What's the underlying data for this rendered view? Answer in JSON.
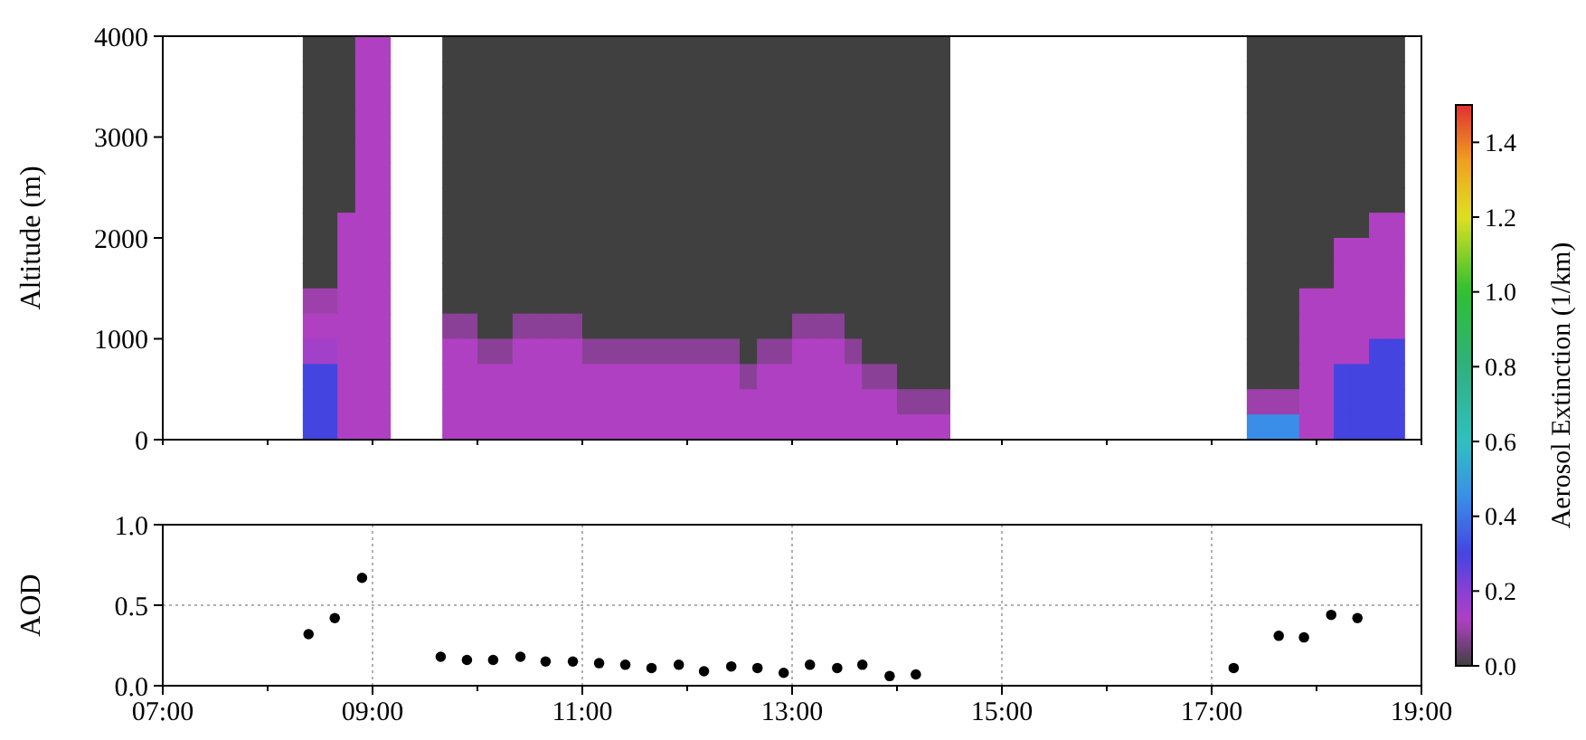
{
  "chart_data": [
    {
      "type": "heatmap",
      "ylabel": "Altitude (m)",
      "clabel": "Aerosol Extinction (1/km)",
      "tick_labels": "y",
      "xlim": [
        7,
        19
      ],
      "xticks": [
        {
          "value": 7,
          "label": null
        },
        {
          "value": 8,
          "label": null
        },
        {
          "value": 9,
          "label": null
        },
        {
          "value": 10,
          "label": null
        },
        {
          "value": 11,
          "label": null
        },
        {
          "value": 12,
          "label": null
        },
        {
          "value": 13,
          "label": null
        },
        {
          "value": 14,
          "label": null
        },
        {
          "value": 15,
          "label": null
        },
        {
          "value": 16,
          "label": null
        },
        {
          "value": 17,
          "label": null
        },
        {
          "value": 18,
          "label": null
        },
        {
          "value": 19,
          "label": null
        }
      ],
      "ylim": [
        0,
        4000
      ],
      "yticks": [
        0,
        1000,
        2000,
        3000,
        4000
      ],
      "clim": [
        0,
        1.5
      ],
      "cticks": [
        {
          "value": 0,
          "label": "0.0"
        },
        {
          "value": 0.2,
          "label": "0.2"
        },
        {
          "value": 0.4,
          "label": "0.4"
        },
        {
          "value": 0.6,
          "label": "0.6"
        },
        {
          "value": 0.8,
          "label": "0.8"
        },
        {
          "value": 1,
          "label": "1.0"
        },
        {
          "value": 1.2,
          "label": "1.2"
        },
        {
          "value": 1.4,
          "label": "1.4"
        }
      ],
      "x": [
        7.08,
        7.25,
        7.42,
        7.58,
        7.75,
        7.92,
        8.08,
        8.25,
        8.42,
        8.58,
        8.75,
        8.92,
        9.08,
        9.25,
        9.42,
        9.58,
        9.75,
        9.92,
        10.08,
        10.25,
        10.42,
        10.58,
        10.75,
        10.92,
        11.08,
        11.25,
        11.42,
        11.58,
        11.75,
        11.92,
        12.08,
        12.25,
        12.42,
        12.58,
        12.75,
        12.92,
        13.08,
        13.25,
        13.42,
        13.58,
        13.75,
        13.92,
        14.08,
        14.25,
        14.42,
        14.58,
        14.75,
        14.92,
        15.08,
        15.25,
        15.42,
        15.58,
        15.75,
        15.92,
        16.08,
        16.25,
        16.42,
        16.58,
        16.75,
        16.92,
        17.08,
        17.25,
        17.42,
        17.58,
        17.75,
        17.92,
        18.08,
        18.25,
        18.42,
        18.58,
        18.75,
        18.92
      ],
      "cells": [
        [
          null,
          null,
          null,
          null,
          null,
          null,
          null,
          null,
          0,
          0,
          0,
          0.12,
          0.12,
          null,
          null,
          null,
          0,
          0,
          0,
          0,
          0,
          0,
          0,
          0,
          0,
          0,
          0,
          0,
          0,
          0,
          0,
          0,
          0,
          0,
          0,
          0,
          0,
          0,
          0,
          0,
          0,
          0,
          0,
          0,
          0,
          null,
          null,
          null,
          null,
          null,
          null,
          null,
          null,
          null,
          null,
          null,
          null,
          null,
          null,
          null,
          null,
          null,
          0,
          0,
          0,
          0,
          0,
          0,
          0,
          0,
          0,
          null
        ],
        [
          null,
          null,
          null,
          null,
          null,
          null,
          null,
          null,
          0,
          0,
          0,
          0.12,
          0.12,
          null,
          null,
          null,
          0,
          0,
          0,
          0,
          0,
          0,
          0,
          0,
          0,
          0,
          0,
          0,
          0,
          0,
          0,
          0,
          0,
          0,
          0,
          0,
          0,
          0,
          0,
          0,
          0,
          0,
          0,
          0,
          0,
          null,
          null,
          null,
          null,
          null,
          null,
          null,
          null,
          null,
          null,
          null,
          null,
          null,
          null,
          null,
          null,
          null,
          0,
          0,
          0,
          0,
          0,
          0,
          0,
          0,
          0,
          null
        ],
        [
          null,
          null,
          null,
          null,
          null,
          null,
          null,
          null,
          0,
          0,
          0,
          0.12,
          0.12,
          null,
          null,
          null,
          0,
          0,
          0,
          0,
          0,
          0,
          0,
          0,
          0,
          0,
          0,
          0,
          0,
          0,
          0,
          0,
          0,
          0,
          0,
          0,
          0,
          0,
          0,
          0,
          0,
          0,
          0,
          0,
          0,
          null,
          null,
          null,
          null,
          null,
          null,
          null,
          null,
          null,
          null,
          null,
          null,
          null,
          null,
          null,
          null,
          null,
          0,
          0,
          0,
          0,
          0,
          0,
          0,
          0,
          0,
          null
        ],
        [
          null,
          null,
          null,
          null,
          null,
          null,
          null,
          null,
          0,
          0,
          0,
          0.12,
          0.12,
          null,
          null,
          null,
          0,
          0,
          0,
          0,
          0,
          0,
          0,
          0,
          0,
          0,
          0,
          0,
          0,
          0,
          0,
          0,
          0,
          0,
          0,
          0,
          0,
          0,
          0,
          0,
          0,
          0,
          0,
          0,
          0,
          null,
          null,
          null,
          null,
          null,
          null,
          null,
          null,
          null,
          null,
          null,
          null,
          null,
          null,
          null,
          null,
          null,
          0,
          0,
          0,
          0,
          0,
          0,
          0,
          0,
          0,
          null
        ],
        [
          null,
          null,
          null,
          null,
          null,
          null,
          null,
          null,
          0,
          0,
          0,
          0.12,
          0.12,
          null,
          null,
          null,
          0,
          0,
          0,
          0,
          0,
          0,
          0,
          0,
          0,
          0,
          0,
          0,
          0,
          0,
          0,
          0,
          0,
          0,
          0,
          0,
          0,
          0,
          0,
          0,
          0,
          0,
          0,
          0,
          0,
          null,
          null,
          null,
          null,
          null,
          null,
          null,
          null,
          null,
          null,
          null,
          null,
          null,
          null,
          null,
          null,
          null,
          0,
          0,
          0,
          0,
          0,
          0,
          0,
          0,
          0,
          null
        ],
        [
          null,
          null,
          null,
          null,
          null,
          null,
          null,
          null,
          0,
          0,
          0,
          0.12,
          0.12,
          null,
          null,
          null,
          0,
          0,
          0,
          0,
          0,
          0,
          0,
          0,
          0,
          0,
          0,
          0,
          0,
          0,
          0,
          0,
          0,
          0,
          0,
          0,
          0,
          0,
          0,
          0,
          0,
          0,
          0,
          0,
          0,
          null,
          null,
          null,
          null,
          null,
          null,
          null,
          null,
          null,
          null,
          null,
          null,
          null,
          null,
          null,
          null,
          null,
          0,
          0,
          0,
          0,
          0,
          0,
          0,
          0,
          0,
          null
        ],
        [
          null,
          null,
          null,
          null,
          null,
          null,
          null,
          null,
          0,
          0,
          0,
          0.12,
          0.12,
          null,
          null,
          null,
          0,
          0,
          0,
          0,
          0,
          0,
          0,
          0,
          0,
          0,
          0,
          0,
          0,
          0,
          0,
          0,
          0,
          0,
          0,
          0,
          0,
          0,
          0,
          0,
          0,
          0,
          0,
          0,
          0,
          null,
          null,
          null,
          null,
          null,
          null,
          null,
          null,
          null,
          null,
          null,
          null,
          null,
          null,
          null,
          null,
          null,
          0,
          0,
          0,
          0,
          0,
          0,
          0,
          0,
          0,
          null
        ],
        [
          null,
          null,
          null,
          null,
          null,
          null,
          null,
          null,
          0,
          0,
          0.12,
          0.12,
          0.12,
          null,
          null,
          null,
          0,
          0,
          0,
          0,
          0,
          0,
          0,
          0,
          0,
          0,
          0,
          0,
          0,
          0,
          0,
          0,
          0,
          0,
          0,
          0,
          0,
          0,
          0,
          0,
          0,
          0,
          0,
          0,
          0,
          null,
          null,
          null,
          null,
          null,
          null,
          null,
          null,
          null,
          null,
          null,
          null,
          null,
          null,
          null,
          null,
          null,
          0,
          0,
          0,
          0,
          0,
          0,
          0,
          0.12,
          0.12,
          null
        ],
        [
          null,
          null,
          null,
          null,
          null,
          null,
          null,
          null,
          0,
          0,
          0.12,
          0.12,
          0.12,
          null,
          null,
          null,
          0,
          0,
          0,
          0,
          0,
          0,
          0,
          0,
          0,
          0,
          0,
          0,
          0,
          0,
          0,
          0,
          0,
          0,
          0,
          0,
          0,
          0,
          0,
          0,
          0,
          0,
          0,
          0,
          0,
          null,
          null,
          null,
          null,
          null,
          null,
          null,
          null,
          null,
          null,
          null,
          null,
          null,
          null,
          null,
          null,
          null,
          0,
          0,
          0,
          0,
          0,
          0.12,
          0.12,
          0.12,
          0.12,
          null
        ],
        [
          null,
          null,
          null,
          null,
          null,
          null,
          null,
          null,
          0,
          0,
          0.12,
          0.12,
          0.12,
          null,
          null,
          null,
          0,
          0,
          0,
          0,
          0,
          0,
          0,
          0,
          0,
          0,
          0,
          0,
          0,
          0,
          0,
          0,
          0,
          0,
          0,
          0,
          0,
          0,
          0,
          0,
          0,
          0,
          0,
          0,
          0,
          null,
          null,
          null,
          null,
          null,
          null,
          null,
          null,
          null,
          null,
          null,
          null,
          null,
          null,
          null,
          null,
          null,
          0,
          0,
          0,
          0,
          0,
          0.12,
          0.12,
          0.12,
          0.12,
          null
        ],
        [
          null,
          null,
          null,
          null,
          null,
          null,
          null,
          null,
          0.1,
          0.1,
          0.12,
          0.12,
          0.12,
          null,
          null,
          null,
          0,
          0,
          0,
          0,
          0,
          0,
          0,
          0,
          0,
          0,
          0,
          0,
          0,
          0,
          0,
          0,
          0,
          0,
          0,
          0,
          0,
          0,
          0,
          0,
          0,
          0,
          0,
          0,
          0,
          null,
          null,
          null,
          null,
          null,
          null,
          null,
          null,
          null,
          null,
          null,
          null,
          null,
          null,
          null,
          null,
          null,
          0,
          0,
          0,
          0.12,
          0.12,
          0.12,
          0.12,
          0.12,
          0.12,
          null
        ],
        [
          null,
          null,
          null,
          null,
          null,
          null,
          null,
          null,
          0.12,
          0.12,
          0.12,
          0.12,
          0.12,
          null,
          null,
          null,
          0.08,
          0.08,
          0,
          0,
          0.08,
          0.08,
          0.08,
          0.08,
          0,
          0,
          0,
          0,
          0,
          0,
          0,
          0,
          0,
          0,
          0,
          0,
          0.08,
          0.08,
          0.08,
          0,
          0,
          0,
          0,
          0,
          0,
          null,
          null,
          null,
          null,
          null,
          null,
          null,
          null,
          null,
          null,
          null,
          null,
          null,
          null,
          null,
          null,
          null,
          0,
          0,
          0,
          0.12,
          0.12,
          0.12,
          0.12,
          0.12,
          0.12,
          null
        ],
        [
          null,
          null,
          null,
          null,
          null,
          null,
          null,
          null,
          0.15,
          0.15,
          0.12,
          0.12,
          0.12,
          null,
          null,
          null,
          0.12,
          0.12,
          0.08,
          0.08,
          0.12,
          0.12,
          0.12,
          0.12,
          0.08,
          0.08,
          0.08,
          0.08,
          0.08,
          0.08,
          0.08,
          0.08,
          0.08,
          0,
          0.08,
          0.08,
          0.12,
          0.12,
          0.12,
          0.08,
          0,
          0,
          0,
          0,
          0,
          null,
          null,
          null,
          null,
          null,
          null,
          null,
          null,
          null,
          null,
          null,
          null,
          null,
          null,
          null,
          null,
          null,
          0,
          0,
          0,
          0.12,
          0.12,
          0.12,
          0.12,
          0.3,
          0.3,
          null
        ],
        [
          null,
          null,
          null,
          null,
          null,
          null,
          null,
          null,
          0.3,
          0.3,
          0.12,
          0.12,
          0.12,
          null,
          null,
          null,
          0.12,
          0.12,
          0.12,
          0.12,
          0.12,
          0.12,
          0.12,
          0.12,
          0.12,
          0.12,
          0.12,
          0.12,
          0.12,
          0.12,
          0.12,
          0.12,
          0.12,
          0.08,
          0.12,
          0.12,
          0.12,
          0.12,
          0.12,
          0.12,
          0.08,
          0.08,
          0,
          0,
          0,
          null,
          null,
          null,
          null,
          null,
          null,
          null,
          null,
          null,
          null,
          null,
          null,
          null,
          null,
          null,
          null,
          null,
          0,
          0,
          0,
          0.12,
          0.12,
          0.3,
          0.3,
          0.3,
          0.3,
          null
        ],
        [
          null,
          null,
          null,
          null,
          null,
          null,
          null,
          null,
          0.3,
          0.3,
          0.12,
          0.12,
          0.12,
          null,
          null,
          null,
          0.12,
          0.12,
          0.12,
          0.12,
          0.12,
          0.12,
          0.12,
          0.12,
          0.12,
          0.12,
          0.12,
          0.12,
          0.12,
          0.12,
          0.12,
          0.12,
          0.12,
          0.12,
          0.12,
          0.12,
          0.12,
          0.12,
          0.12,
          0.12,
          0.12,
          0.12,
          0.08,
          0.08,
          0.08,
          null,
          null,
          null,
          null,
          null,
          null,
          null,
          null,
          null,
          null,
          null,
          null,
          null,
          null,
          null,
          null,
          null,
          0.1,
          0.1,
          0.1,
          0.12,
          0.12,
          0.3,
          0.3,
          0.3,
          0.3,
          null
        ],
        [
          null,
          null,
          null,
          null,
          null,
          null,
          null,
          null,
          0.3,
          0.3,
          0.12,
          0.12,
          0.12,
          null,
          null,
          null,
          0.12,
          0.12,
          0.12,
          0.12,
          0.12,
          0.12,
          0.12,
          0.12,
          0.12,
          0.12,
          0.12,
          0.12,
          0.12,
          0.12,
          0.12,
          0.12,
          0.12,
          0.12,
          0.12,
          0.12,
          0.12,
          0.12,
          0.12,
          0.12,
          0.12,
          0.12,
          0.12,
          0.12,
          0.12,
          null,
          null,
          null,
          null,
          null,
          null,
          null,
          null,
          null,
          null,
          null,
          null,
          null,
          null,
          null,
          null,
          null,
          0.45,
          0.45,
          0.45,
          0.12,
          0.12,
          0.3,
          0.3,
          0.3,
          0.3,
          null
        ]
      ]
    },
    {
      "type": "scatter",
      "ylabel": "AOD",
      "grid": true,
      "marker": "circle",
      "color": "#000000",
      "xlim": [
        7,
        19
      ],
      "xticks": [
        {
          "value": 7,
          "label": "07:00"
        },
        {
          "value": 8,
          "label": null
        },
        {
          "value": 9,
          "label": "09:00"
        },
        {
          "value": 10,
          "label": null
        },
        {
          "value": 11,
          "label": "11:00"
        },
        {
          "value": 12,
          "label": null
        },
        {
          "value": 13,
          "label": "13:00"
        },
        {
          "value": 14,
          "label": null
        },
        {
          "value": 15,
          "label": "15:00"
        },
        {
          "value": 16,
          "label": null
        },
        {
          "value": 17,
          "label": "17:00"
        },
        {
          "value": 18,
          "label": null
        },
        {
          "value": 19,
          "label": "19:00"
        }
      ],
      "ylim": [
        0,
        1
      ],
      "yticks": [
        {
          "value": 0,
          "label": "0.0"
        },
        {
          "value": 0.5,
          "label": "0.5"
        },
        {
          "value": 1,
          "label": "1.0"
        }
      ],
      "x": [
        8.39,
        8.64,
        8.9,
        9.65,
        9.9,
        10.15,
        10.41,
        10.65,
        10.91,
        11.16,
        11.41,
        11.66,
        11.92,
        12.16,
        12.42,
        12.67,
        12.92,
        13.17,
        13.43,
        13.67,
        13.93,
        14.18,
        17.21,
        17.64,
        17.88,
        18.14,
        18.39
      ],
      "values": [
        0.32,
        0.42,
        0.67,
        0.18,
        0.16,
        0.16,
        0.18,
        0.15,
        0.15,
        0.14,
        0.13,
        0.11,
        0.13,
        0.09,
        0.12,
        0.11,
        0.08,
        0.13,
        0.11,
        0.13,
        0.06,
        0.07,
        0.11,
        0.31,
        0.3,
        0.44,
        0.42
      ]
    }
  ]
}
